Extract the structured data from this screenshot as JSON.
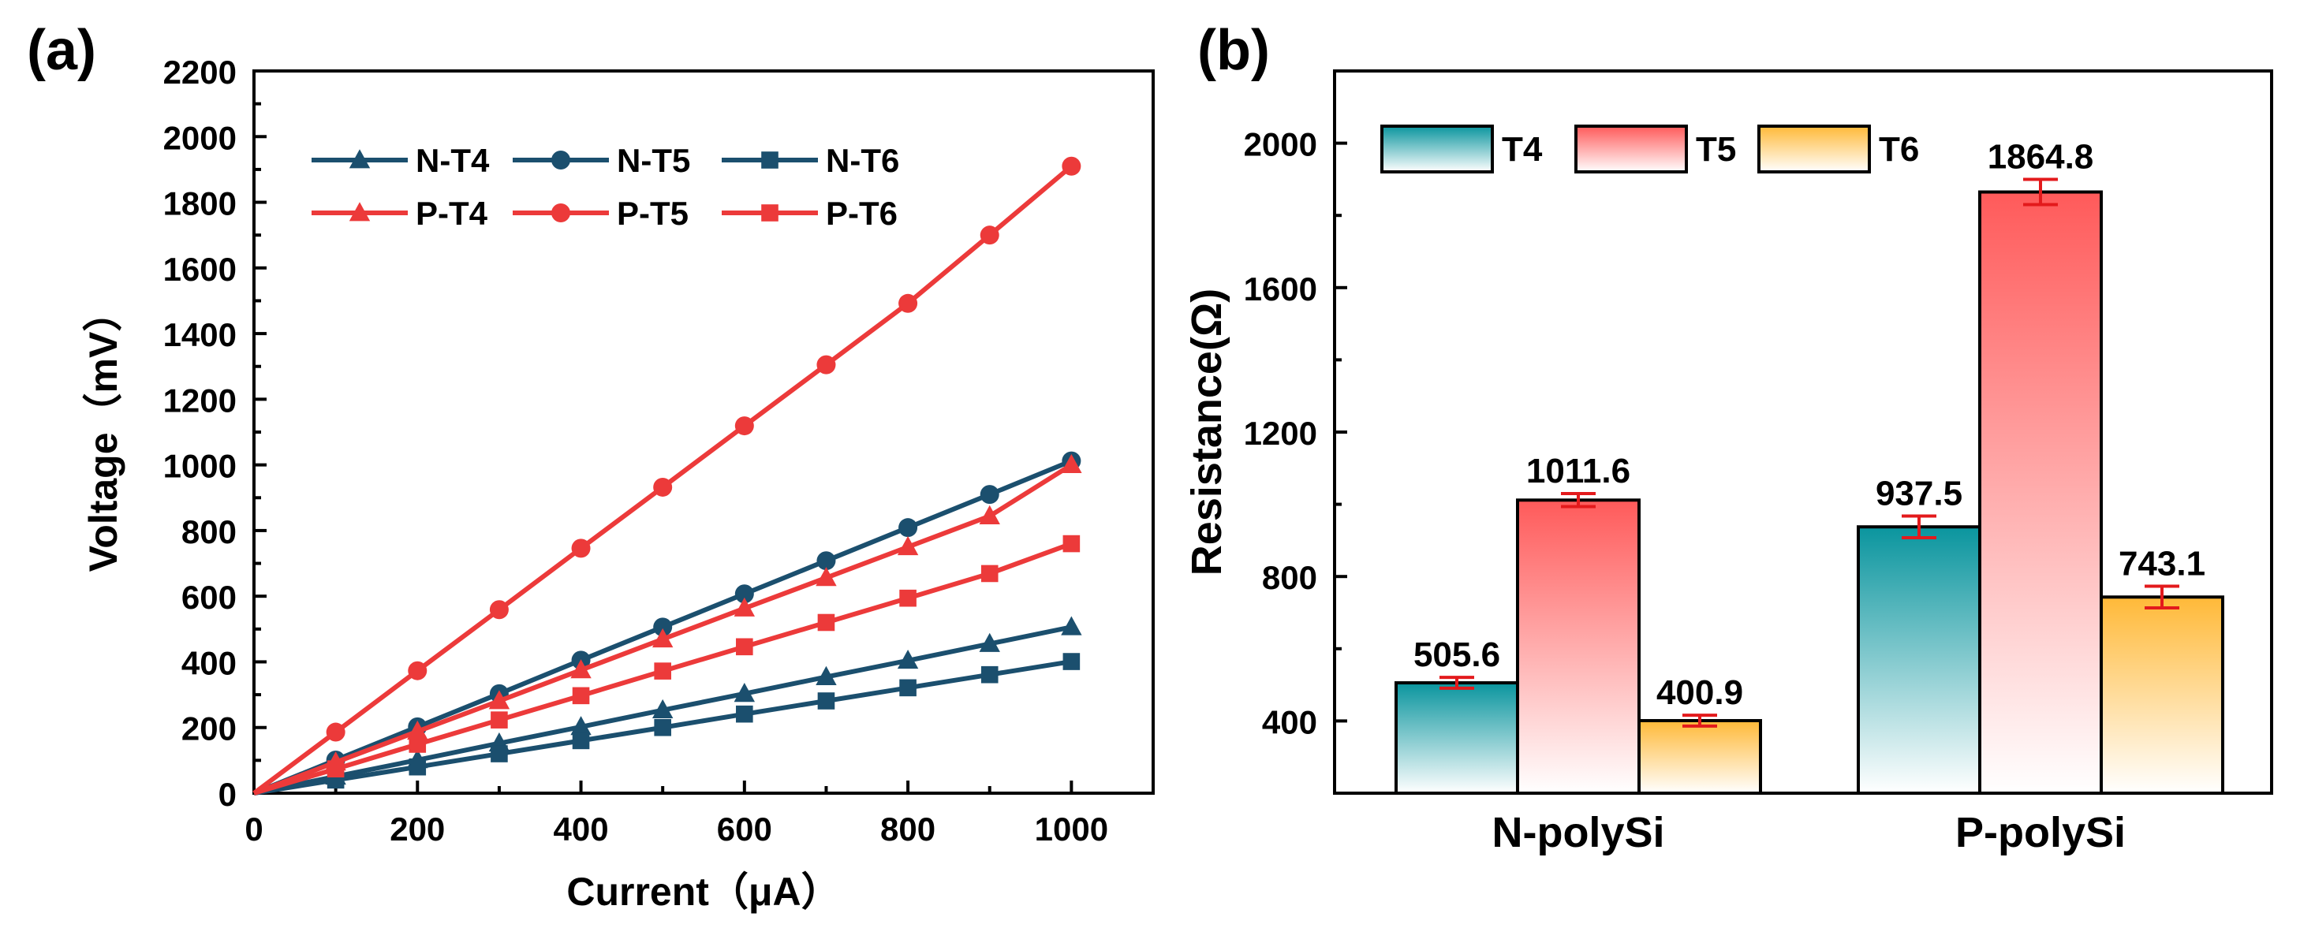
{
  "panels": {
    "a": {
      "label": "(a)"
    },
    "b": {
      "label": "(b)"
    }
  },
  "chart_data": [
    {
      "type": "line",
      "panel": "(a)",
      "title": "",
      "xlabel": "Current（μA）",
      "ylabel": "Voltage（mV）",
      "xlim": [
        0,
        1100
      ],
      "ylim": [
        0,
        2200
      ],
      "xticks": [
        0,
        200,
        400,
        600,
        800,
        1000
      ],
      "yticks": [
        0,
        200,
        400,
        600,
        800,
        1000,
        1200,
        1400,
        1600,
        1800,
        2000,
        2200
      ],
      "legend_position": "top-left",
      "x": [
        0,
        100,
        200,
        300,
        400,
        500,
        600,
        700,
        800,
        900,
        1000
      ],
      "series": [
        {
          "name": "N-T4",
          "color": "#1b4f6e",
          "marker": "triangle",
          "values": [
            0,
            51,
            101,
            152,
            202,
            253,
            303,
            354,
            404,
            455,
            506
          ]
        },
        {
          "name": "N-T5",
          "color": "#1b4f6e",
          "marker": "circle",
          "values": [
            0,
            101,
            202,
            303,
            405,
            506,
            607,
            708,
            809,
            910,
            1012
          ]
        },
        {
          "name": "N-T6",
          "color": "#1b4f6e",
          "marker": "square",
          "values": [
            0,
            40,
            80,
            120,
            160,
            200,
            241,
            281,
            321,
            361,
            401
          ]
        },
        {
          "name": "P-T4",
          "color": "#ec3a3a",
          "marker": "triangle",
          "values": [
            0,
            94,
            188,
            281,
            375,
            469,
            563,
            656,
            750,
            844,
            1000
          ]
        },
        {
          "name": "P-T5",
          "color": "#ec3a3a",
          "marker": "circle",
          "values": [
            0,
            186,
            373,
            559,
            746,
            932,
            1119,
            1305,
            1492,
            1700,
            1910
          ]
        },
        {
          "name": "P-T6",
          "color": "#ec3a3a",
          "marker": "square",
          "values": [
            0,
            74,
            149,
            223,
            297,
            372,
            446,
            520,
            594,
            669,
            760
          ]
        }
      ]
    },
    {
      "type": "bar",
      "panel": "(b)",
      "title": "",
      "xlabel": "",
      "ylabel": "Resistance(Ω)",
      "ylim": [
        200,
        2200
      ],
      "yticks": [
        400,
        800,
        1200,
        1600,
        2000
      ],
      "legend_position": "top",
      "categories": [
        "N-polySi",
        "P-polySi"
      ],
      "series": [
        {
          "name": "T4",
          "color": "#0a959e",
          "values": [
            505.6,
            937.5
          ],
          "errors": [
            15,
            30
          ],
          "labels": [
            "505.6",
            "937.5"
          ]
        },
        {
          "name": "T5",
          "color": "#ff5a5a",
          "values": [
            1011.6,
            1864.8
          ],
          "errors": [
            18,
            35
          ],
          "labels": [
            "1011.6",
            "1864.8"
          ]
        },
        {
          "name": "T6",
          "color": "#ffb938",
          "values": [
            400.9,
            743.1
          ],
          "errors": [
            15,
            30
          ],
          "labels": [
            "400.9",
            "743.1"
          ]
        }
      ]
    }
  ]
}
